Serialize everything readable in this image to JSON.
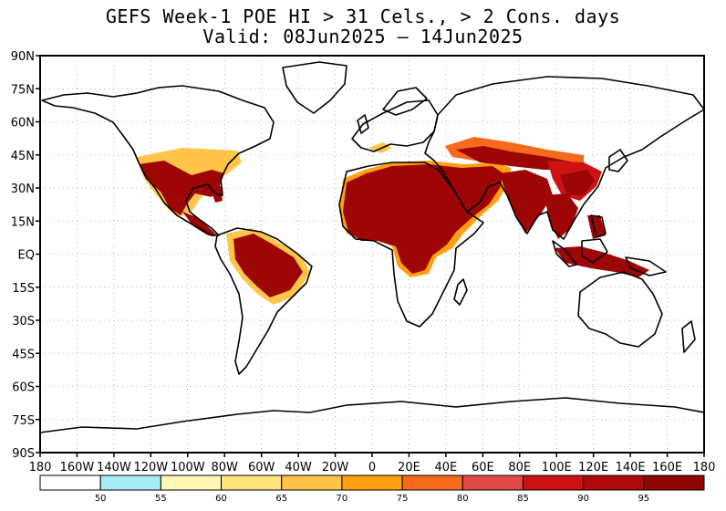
{
  "title": {
    "line1": "GEFS Week-1 POE HI > 31 Cels., > 2 Cons. days",
    "line2": "Valid: 08Jun2025 — 14Jun2025"
  },
  "axes": {
    "lat_labels": [
      "90N",
      "75N",
      "60N",
      "45N",
      "30N",
      "15N",
      "EQ",
      "15S",
      "30S",
      "45S",
      "60S",
      "75S",
      "90S"
    ],
    "lon_labels": [
      "180",
      "160W",
      "140W",
      "120W",
      "100W",
      "80W",
      "60W",
      "40W",
      "20W",
      "0",
      "20E",
      "40E",
      "60E",
      "80E",
      "100E",
      "120E",
      "140E",
      "160E",
      "180"
    ],
    "lon_range": [
      -180,
      180
    ],
    "lat_range": [
      -90,
      90
    ],
    "grid": "dotted"
  },
  "colorbar": {
    "colors": [
      "#ffffff",
      "#a6ecf5",
      "#fff7b4",
      "#ffe37c",
      "#ffc44a",
      "#ff9f12",
      "#f66a1c",
      "#e24a4a",
      "#cc1212",
      "#b20a0a",
      "#900505"
    ],
    "tick_labels": [
      "50",
      "55",
      "60",
      "65",
      "70",
      "75",
      "80",
      "85",
      "90",
      "95"
    ]
  },
  "colors": {
    "land_outline": "#000000",
    "high_prob": "#9e0606"
  }
}
